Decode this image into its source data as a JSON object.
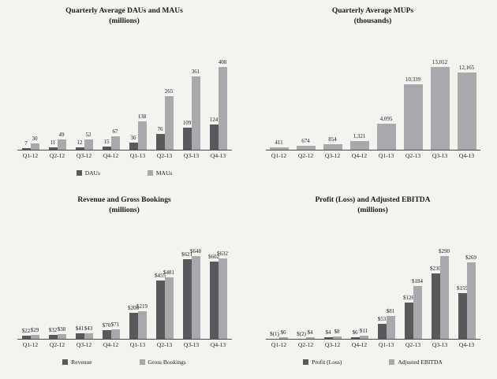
{
  "colors": {
    "dark_series": "#58595b",
    "light_series": "#a7a9ac",
    "background": "#f4f3f0",
    "axis": "#4a4a4a"
  },
  "chart_data": [
    {
      "type": "bar",
      "title_line1": "Quarterly Average DAUs and MAUs",
      "title_line2": "(millions)",
      "categories": [
        "Q1-12",
        "Q2-12",
        "Q3-12",
        "Q4-12",
        "Q1-13",
        "Q2-13",
        "Q3-13",
        "Q4-13"
      ],
      "series": [
        {
          "name": "DAUs",
          "color": "#58595b",
          "values": [
            7,
            11,
            12,
            15,
            36,
            76,
            109,
            124
          ],
          "labels": [
            "7",
            "11",
            "12",
            "15",
            "36",
            "76",
            "109",
            "124"
          ]
        },
        {
          "name": "MAUs",
          "color": "#a7a9ac",
          "values": [
            30,
            49,
            52,
            67,
            138,
            265,
            361,
            408
          ],
          "labels": [
            "30",
            "49",
            "52",
            "67",
            "138",
            "265",
            "361",
            "408"
          ]
        }
      ],
      "legend_visible": true,
      "legend_position": "bottom",
      "ylim": [
        0,
        408
      ],
      "grid": false
    },
    {
      "type": "bar",
      "title_line1": "Quarterly Average MUPs",
      "title_line2": "(thousands)",
      "categories": [
        "Q1-12",
        "Q2-12",
        "Q3-12",
        "Q4-12",
        "Q1-13",
        "Q2-13",
        "Q3-13",
        "Q4-13"
      ],
      "series": [
        {
          "name": "MUPs",
          "color": "#a7a9ac",
          "values": [
            411,
            674,
            854,
            1321,
            4095,
            10339,
            13012,
            12165
          ],
          "labels": [
            "411",
            "674",
            "854",
            "1,321",
            "4,095",
            "10,339",
            "13,012",
            "12,165"
          ]
        }
      ],
      "legend_visible": false,
      "legend_position": "none",
      "ylim": [
        0,
        13012
      ],
      "grid": false
    },
    {
      "type": "bar",
      "title_line1": "Revenue and Gross Bookings",
      "title_line2": "(millions)",
      "categories": [
        "Q1-12",
        "Q2-12",
        "Q3-12",
        "Q4-12",
        "Q1-13",
        "Q2-13",
        "Q3-13",
        "Q4-13"
      ],
      "series": [
        {
          "name": "Revenue",
          "color": "#58595b",
          "values": [
            22,
            32,
            41,
            70,
            206,
            455,
            621,
            602
          ],
          "labels": [
            "$22",
            "$32",
            "$41",
            "$70",
            "$206",
            "$455",
            "$621",
            "$602"
          ]
        },
        {
          "name": "Gross Bookings",
          "color": "#a7a9ac",
          "values": [
            29,
            38,
            43,
            71,
            219,
            481,
            648,
            632
          ],
          "labels": [
            "$29",
            "$38",
            "$43",
            "$71",
            "$219",
            "$481",
            "$648",
            "$632"
          ]
        }
      ],
      "legend_visible": true,
      "legend_position": "bottom",
      "ylim": [
        0,
        648
      ],
      "grid": false
    },
    {
      "type": "bar",
      "title_line1": "Profit (Loss) and Adjusted EBITDA",
      "title_line2": "(millions)",
      "categories": [
        "Q1-12",
        "Q2-12",
        "Q3-12",
        "Q4-12",
        "Q1-13",
        "Q2-13",
        "Q3-13",
        "Q4-13"
      ],
      "series": [
        {
          "name": "Profit (Loss)",
          "color": "#58595b",
          "values": [
            -1,
            -2,
            4,
            6,
            53,
            126,
            230,
            159
          ],
          "labels": [
            "$(1)",
            "$(2)",
            "$4",
            "$6",
            "$53",
            "$126",
            "$230",
            "$159"
          ]
        },
        {
          "name": "Adjusted EBITDA",
          "color": "#a7a9ac",
          "values": [
            6,
            4,
            8,
            11,
            81,
            184,
            290,
            269
          ],
          "labels": [
            "$6",
            "$4",
            "$8",
            "$11",
            "$81",
            "$184",
            "$290",
            "$269"
          ]
        }
      ],
      "legend_visible": true,
      "legend_position": "bottom",
      "ylim": [
        0,
        290
      ],
      "grid": false
    }
  ]
}
